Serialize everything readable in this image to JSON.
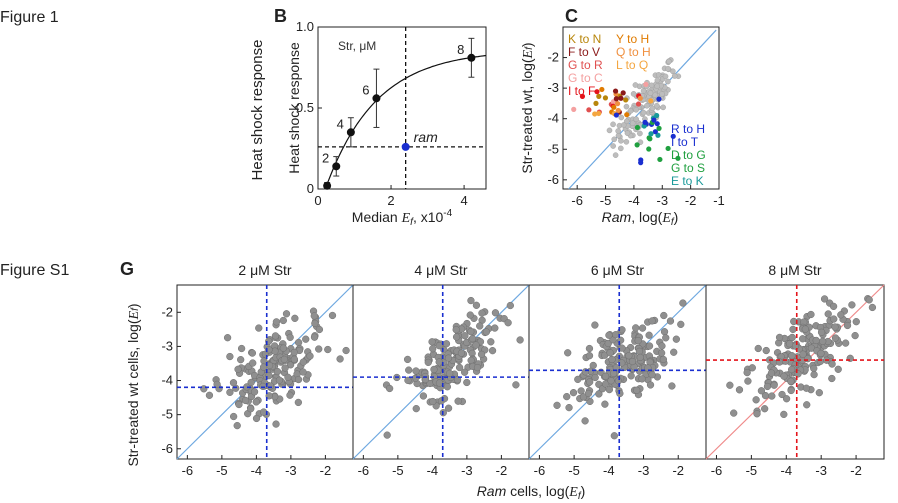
{
  "figure_labels": {
    "fig1": "Figure 1",
    "figS1": "Figure S1"
  },
  "panel_letters": {
    "b": "B",
    "c": "C",
    "g": "G"
  },
  "side_label": "Heat shock response",
  "colors": {
    "side_label": "#a3171e",
    "blue_dash": "#1a2fd0",
    "red_dash": "#e4141b",
    "diag_blue": "#6ea8e0",
    "diag_red": "#ef8a8a",
    "grey_point": "#8f8f8f",
    "ram_point": "#1a2fd0"
  },
  "chart_data": [
    {
      "id": "B",
      "type": "line",
      "annotation": "Str, μM",
      "ylabel": "Heat shock response",
      "xlabel_main": "Median ",
      "xlabel_var": "E",
      "xlabel_sub": "f",
      "xlabel_tail": ", x10",
      "xlabel_exp": "-4",
      "xlim": [
        0,
        4.6
      ],
      "ylim": [
        0,
        1.0
      ],
      "xticks": [
        0,
        2,
        4
      ],
      "yticks": [
        0,
        0.5,
        1.0
      ],
      "ytick_labels": [
        "0",
        "0.5",
        "1.0"
      ],
      "points": [
        {
          "x": 0.25,
          "y": 0.02,
          "err": 0.02,
          "label": ""
        },
        {
          "x": 0.5,
          "y": 0.14,
          "err": 0.06,
          "label": "2"
        },
        {
          "x": 0.9,
          "y": 0.35,
          "err": 0.09,
          "label": "4"
        },
        {
          "x": 1.6,
          "y": 0.56,
          "err": 0.18,
          "label": "6"
        },
        {
          "x": 4.2,
          "y": 0.81,
          "err": 0.12,
          "label": "8"
        }
      ],
      "ram": {
        "x": 2.4,
        "y": 0.26,
        "label": "ram"
      },
      "fit": {
        "ymax": 0.86,
        "k": 0.72,
        "x0": 0.2
      }
    },
    {
      "id": "C",
      "type": "scatter",
      "ylabel_main": "Str-treated wt,  log(",
      "ylabel_var": "E",
      "ylabel_sub": "f",
      "ylabel_tail": ")",
      "xlabel_main": "Ram",
      "xlabel_tail": ", log(",
      "xlabel_var": "E",
      "xlabel_sub": "f",
      "xlabel_end": ")",
      "xlim": [
        -6.5,
        -1
      ],
      "ylim": [
        -6.3,
        -1
      ],
      "xticks": [
        -6,
        -5,
        -4,
        -3,
        -2,
        -1
      ],
      "yticks": [
        -2,
        -3,
        -4,
        -5,
        -6
      ],
      "legend_left": [
        {
          "text": "K to N",
          "color": "#b8860b"
        },
        {
          "text": "F to V",
          "color": "#8b1a1a"
        },
        {
          "text": "G to R",
          "color": "#e05050"
        },
        {
          "text": "G to C",
          "color": "#f4a0a0"
        },
        {
          "text": "I to F",
          "color": "#e4141b"
        }
      ],
      "legend_mid": [
        {
          "text": "Y to H",
          "color": "#e07b00"
        },
        {
          "text": "Q to H",
          "color": "#f09040"
        },
        {
          "text": "L to Q",
          "color": "#f4a640"
        }
      ],
      "legend_right": [
        {
          "text": "R to H",
          "color": "#1a2fd0"
        },
        {
          "text": "I to T",
          "color": "#1a2fd0"
        },
        {
          "text": "D to G",
          "color": "#20a040"
        },
        {
          "text": "G to S",
          "color": "#20a040"
        },
        {
          "text": "E to K",
          "color": "#1a9a9a"
        }
      ]
    },
    {
      "id": "G",
      "type": "scatter",
      "ylabel_main": "Str-treated wt cells, log(",
      "ylabel_var": "E",
      "ylabel_sub": "f",
      "ylabel_tail": ")",
      "xlabel_main": "Ram",
      "xlabel_tail": " cells, log(",
      "xlabel_var": "E",
      "xlabel_sub": "f",
      "xlabel_end": ")",
      "xlim": [
        -6.3,
        -1.2
      ],
      "ylim": [
        -6.3,
        -1.2
      ],
      "xticks": [
        -6,
        -5,
        -4,
        -3,
        -2
      ],
      "yticks": [
        -2,
        -3,
        -4,
        -5,
        -6
      ],
      "panels": [
        {
          "title": "2 μM Str",
          "vx": -3.7,
          "hy": -4.2,
          "style": "blue"
        },
        {
          "title": "4 μM Str",
          "vx": -3.7,
          "hy": -3.9,
          "style": "blue"
        },
        {
          "title": "6 μM Str",
          "vx": -3.7,
          "hy": -3.7,
          "style": "blue"
        },
        {
          "title": "8 μM Str",
          "vx": -3.7,
          "hy": -3.4,
          "style": "red"
        }
      ]
    }
  ]
}
